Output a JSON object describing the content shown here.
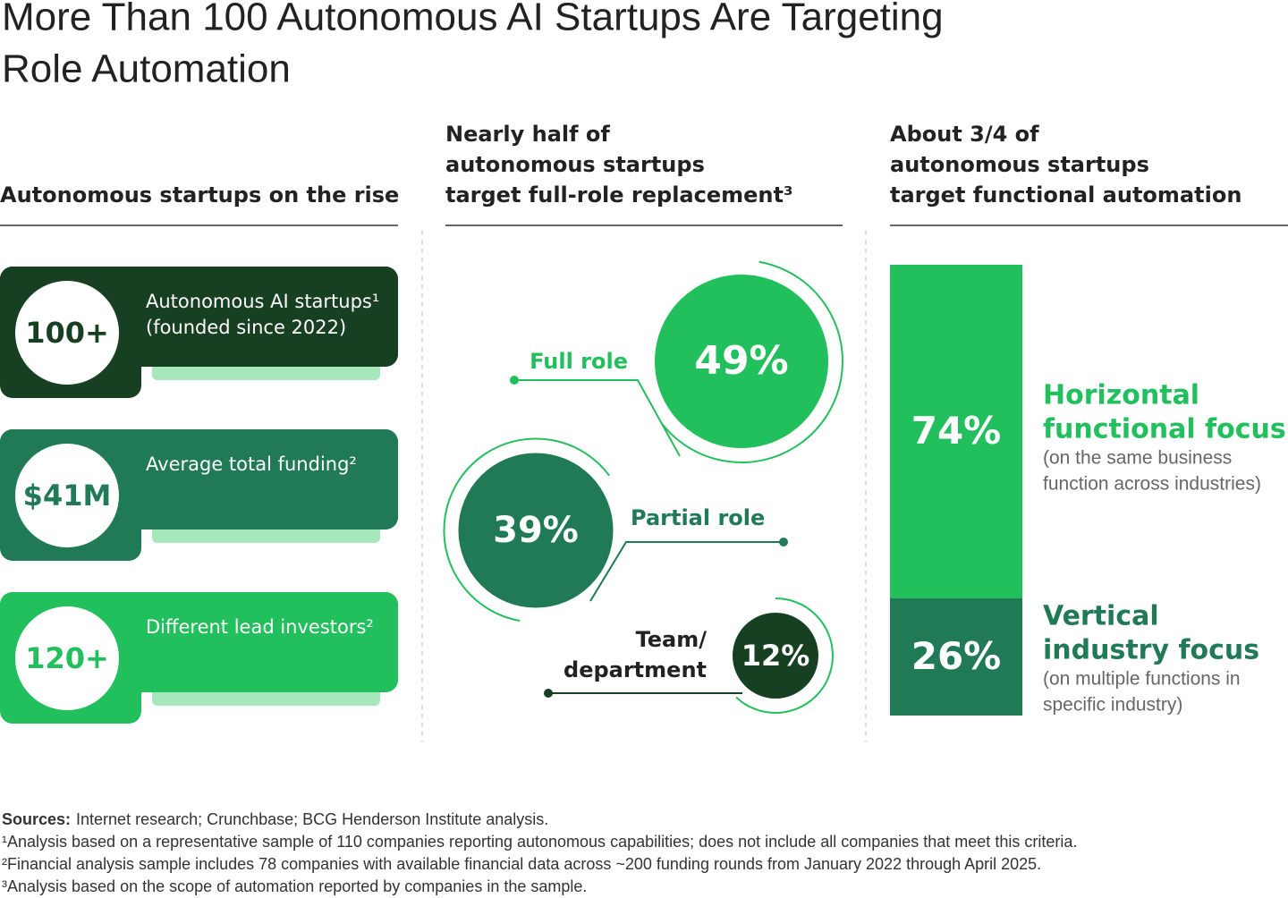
{
  "title": [
    "More Than 100 Autonomous AI Startups Are Targeting",
    "Role Automation"
  ],
  "rise": {
    "heading": "Autonomous startups on the rise",
    "cards": [
      {
        "figure": "100+",
        "label": [
          "Autonomous AI startups¹",
          "(founded since 2022)"
        ]
      },
      {
        "figure": "$41M",
        "label": [
          "Average total funding²"
        ]
      },
      {
        "figure": "120+",
        "label": [
          "Different lead investors²"
        ]
      }
    ]
  },
  "role": {
    "heading": [
      "Nearly half of",
      "autonomous startups",
      "target full-role replacement³"
    ],
    "segments": [
      {
        "value": 49,
        "label": "49%",
        "name": [
          "Full role"
        ]
      },
      {
        "value": 39,
        "label": "39%",
        "name": [
          "Partial role"
        ]
      },
      {
        "value": 12,
        "label": "12%",
        "name": [
          "Team/",
          "department"
        ]
      }
    ]
  },
  "functional": {
    "heading": [
      "About 3/4 of",
      "autonomous startups",
      "target functional automation"
    ],
    "segments": [
      {
        "value": 74,
        "label": "74%",
        "title": [
          "Horizontal",
          "functional focus"
        ],
        "note": [
          "(on the same business",
          "function across industries)"
        ]
      },
      {
        "value": 26,
        "label": "26%",
        "title": [
          "Vertical",
          "industry focus"
        ],
        "note": [
          "(on multiple functions in",
          "specific industry)"
        ]
      }
    ]
  },
  "footer": {
    "sources_label": "Sources:",
    "sources": "Internet research; Crunchbase; BCG Henderson Institute analysis.",
    "notes": [
      "¹Analysis based on a representative sample of 110 companies reporting autonomous capabilities; does not include all companies that meet this criteria.",
      "²Financial analysis sample includes 78 companies with available financial data across ~200 funding rounds from January 2022 through April 2025.",
      "³Analysis based on the scope of automation reported by companies in the sample."
    ]
  }
}
